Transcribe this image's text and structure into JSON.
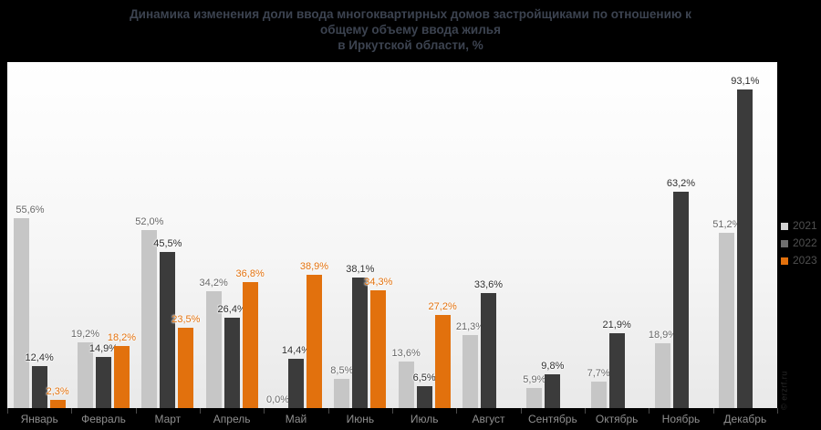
{
  "page": {
    "background": "#000000"
  },
  "title": {
    "line1": "Динамика изменения доли ввода многоквартирных домов застройщиками по отношению к",
    "line2": "общему объему ввода жилья",
    "line3": "в Иркутской области, %",
    "color": "#3c4350"
  },
  "watermark": "© erzrf.ru",
  "chart_data": {
    "type": "bar",
    "title": "Динамика изменения доли ввода многоквартирных домов застройщиками по отношению к общему объему ввода жилья в Иркутской области, %",
    "categories": [
      "Январь",
      "Февраль",
      "Март",
      "Апрель",
      "Май",
      "Июнь",
      "Июль",
      "Август",
      "Сентябрь",
      "Октябрь",
      "Ноябрь",
      "Декабрь"
    ],
    "series": [
      {
        "name": "2021",
        "color": "#c6c6c6",
        "legend_color": "#d2d2d2",
        "label_color": "#666666",
        "values": [
          55.6,
          19.2,
          52.0,
          34.2,
          0.0,
          8.5,
          13.6,
          21.3,
          5.9,
          7.7,
          18.9,
          51.2
        ]
      },
      {
        "name": "2022",
        "color": "#3b3b3b",
        "legend_color": "#6f6f6f",
        "label_color": "#2d2d2d",
        "values": [
          12.4,
          14.9,
          45.5,
          26.4,
          14.4,
          38.1,
          6.5,
          33.6,
          9.8,
          21.9,
          63.2,
          93.1
        ]
      },
      {
        "name": "2023",
        "color": "#e2710d",
        "legend_color": "#e2710d",
        "label_color": "#e2710d",
        "values": [
          2.3,
          18.2,
          23.5,
          36.8,
          38.9,
          34.3,
          27.2,
          null,
          null,
          null,
          null,
          null
        ]
      }
    ],
    "ylim": [
      0,
      101
    ],
    "value_suffix": "%",
    "decimal_separator": ",",
    "grid": false,
    "legend_position": "right",
    "xlabel": "",
    "ylabel": ""
  }
}
